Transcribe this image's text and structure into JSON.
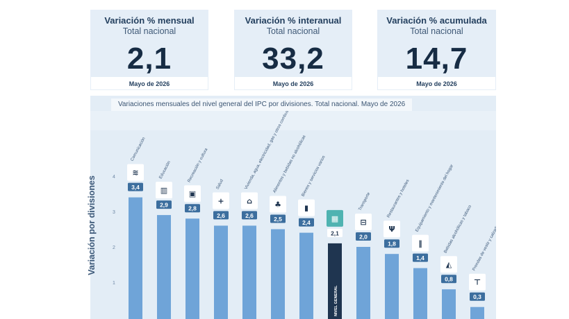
{
  "kpis": [
    {
      "title": "Variación % mensual",
      "subtitle": "Total nacional",
      "value": "2,1",
      "date": "Mayo de 2026"
    },
    {
      "title": "Variación % interanual",
      "subtitle": "Total nacional",
      "value": "33,2",
      "date": "Mayo de 2026"
    },
    {
      "title": "Variación % acumulada",
      "subtitle": "Total nacional",
      "value": "14,7",
      "date": "Mayo de 2026"
    }
  ],
  "colors": {
    "bar": "#6fa4d8",
    "highlight": "#1f3550",
    "label_bg": "#3c6e9e",
    "background": "#e3edf6"
  },
  "chart_data": {
    "type": "bar",
    "title": "Variaciones mensuales del nivel general del IPC por divisiones. Total nacional. Mayo de 2026",
    "ylabel": "Variación por divisiones",
    "xlabel": "",
    "ylim": [
      0,
      4
    ],
    "yticks": [
      "1",
      "2",
      "3",
      "4"
    ],
    "grid": false,
    "categories": [
      "Comunicación",
      "Educación",
      "Recreación y cultura",
      "Salud",
      "Vivienda, agua, electricidad, gas y otros combustibles",
      "Alimentos y bebidas no alcohólicas",
      "Bienes y servicios varios",
      "NIVEL GENERAL",
      "Transporte",
      "Restaurantes y hoteles",
      "Equipamiento y mantenimiento del hogar",
      "Bebidas alcohólicas y tabaco",
      "Prendas de vestir y calzado"
    ],
    "values": [
      3.4,
      2.9,
      2.8,
      2.6,
      2.6,
      2.5,
      2.4,
      2.1,
      2.0,
      1.8,
      1.4,
      0.8,
      0.3
    ],
    "value_labels": [
      "3,4",
      "2,9",
      "2,8",
      "2,6",
      "2,6",
      "2,5",
      "2,4",
      "2,1",
      "2,0",
      "1,8",
      "1,4",
      "0,8",
      "0,3"
    ],
    "highlight_label": "NIVEL GENERAL",
    "icons": [
      "wifi-icon",
      "book-icon",
      "tv-icon",
      "plus-icon",
      "house-icon",
      "food-icon",
      "bottles-icon",
      "basket-icon",
      "car-icon",
      "cutlery-icon",
      "tools-icon",
      "bottle-icon",
      "shirt-icon"
    ]
  }
}
